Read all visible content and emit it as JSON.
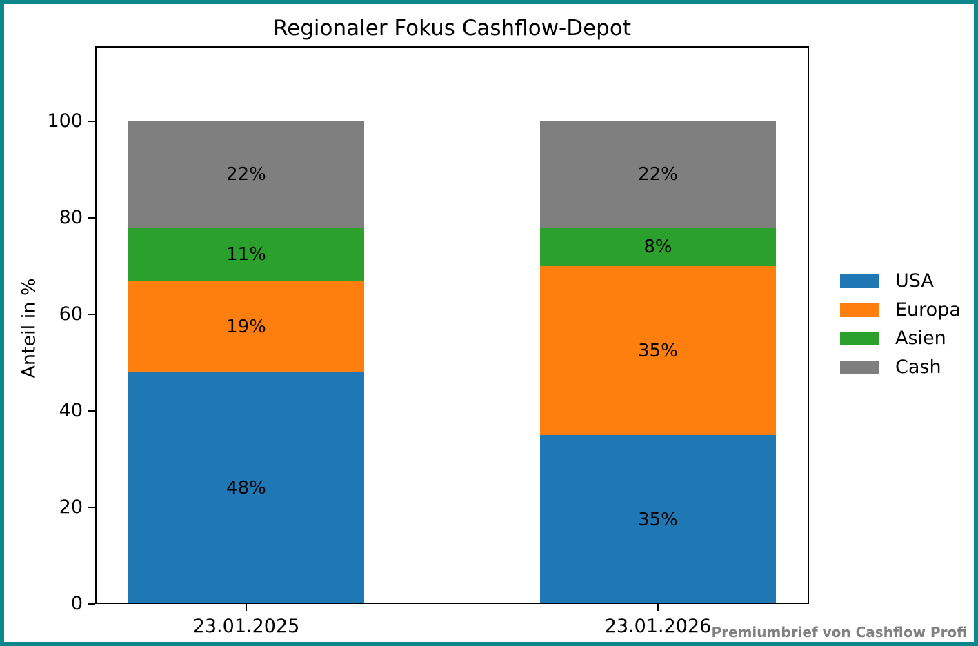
{
  "window": {
    "background": "#ffffff",
    "border_color": "#0c878b"
  },
  "chart_data": {
    "type": "bar",
    "stacked": true,
    "title": "Regionaler Fokus Cashflow-Depot",
    "ylabel": "Anteil in %",
    "xlabel": "",
    "categories": [
      "23.01.2025",
      "23.01.2026"
    ],
    "series": [
      {
        "name": "USA",
        "color": "#1f77b4",
        "values": [
          48,
          35
        ]
      },
      {
        "name": "Europa",
        "color": "#ff7f0e",
        "values": [
          19,
          35
        ]
      },
      {
        "name": "Asien",
        "color": "#2ca02c",
        "values": [
          11,
          8
        ]
      },
      {
        "name": "Cash",
        "color": "#7f7f7f",
        "values": [
          22,
          22
        ]
      }
    ],
    "bar_labels": [
      [
        "48%",
        "19%",
        "11%",
        "22%"
      ],
      [
        "35%",
        "35%",
        "8%",
        "22%"
      ]
    ],
    "yticks": [
      0,
      20,
      40,
      60,
      80,
      100
    ],
    "ylim": [
      0,
      115.6
    ],
    "grid": false,
    "legend": {
      "position": "right",
      "entries": [
        "USA",
        "Europa",
        "Asien",
        "Cash"
      ]
    }
  },
  "footer": {
    "watermark": "Premiumbrief von Cashflow Profi",
    "color": "#808080"
  }
}
